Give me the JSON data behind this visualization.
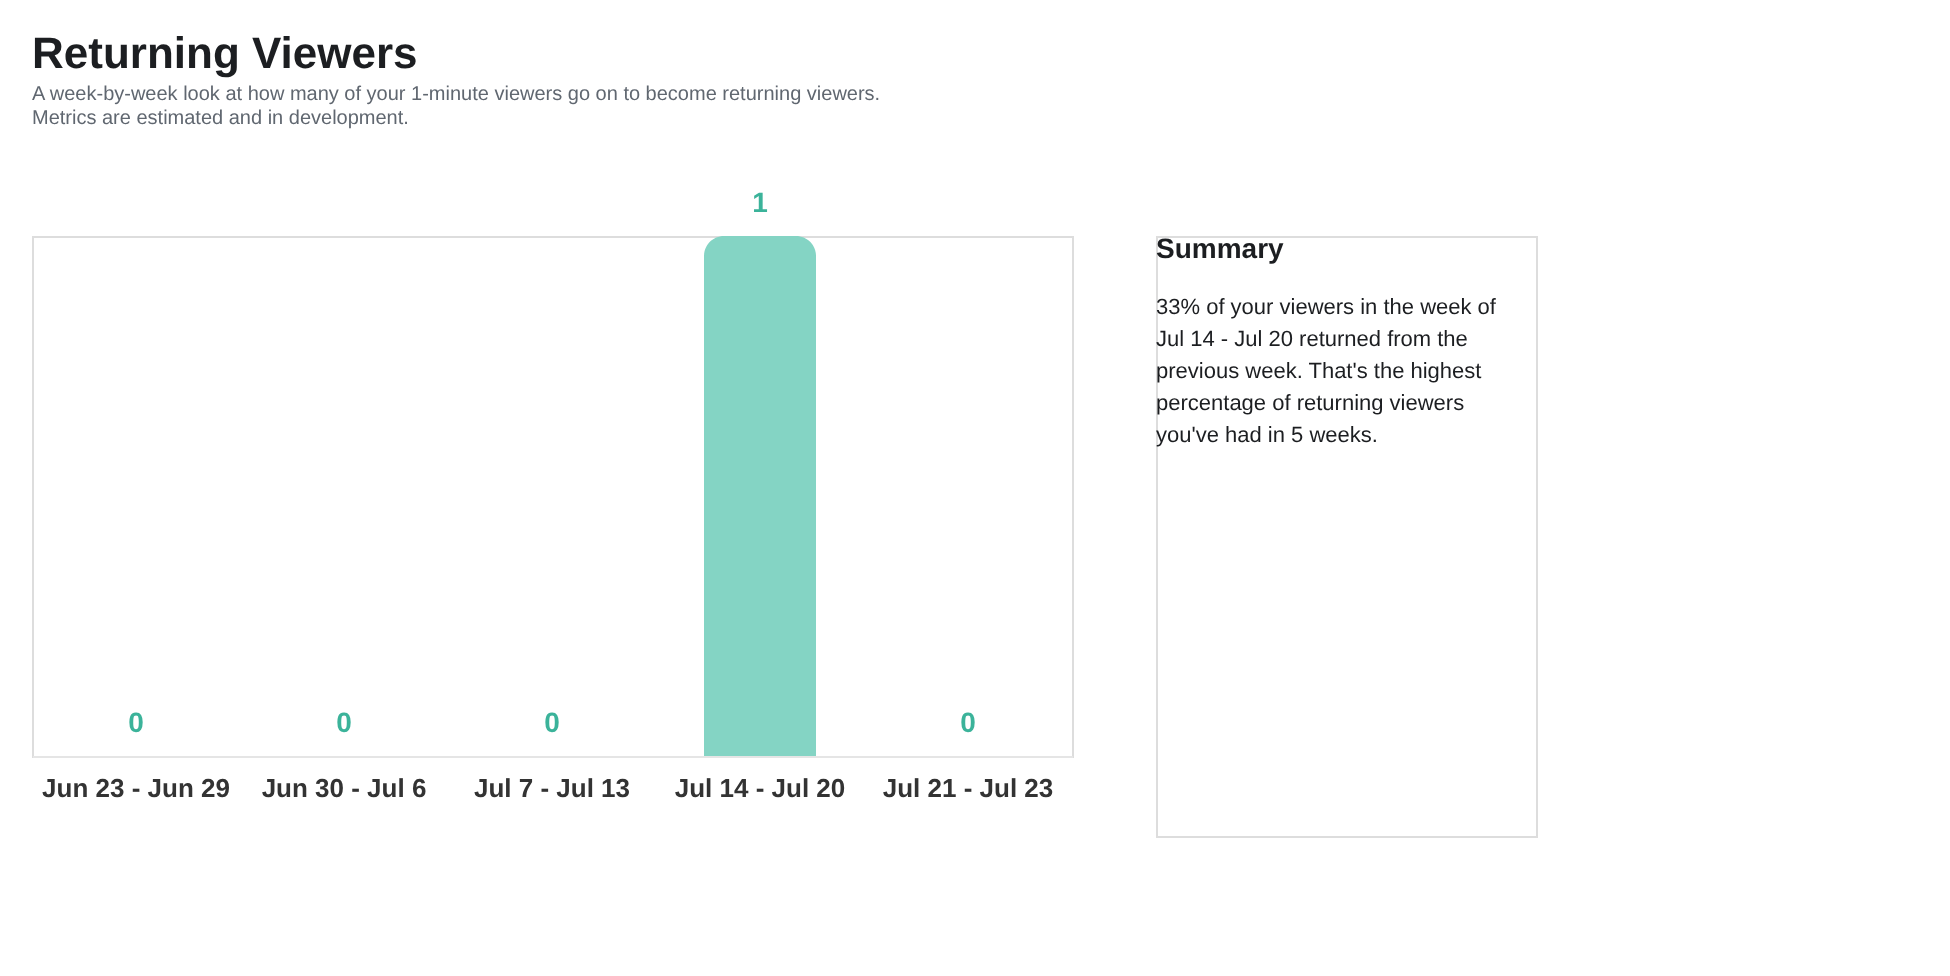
{
  "chart_data": {
    "type": "bar",
    "title": "Returning Viewers",
    "subtitle": "A week-by-week look at how many of your 1-minute viewers go on to become returning viewers. Metrics are estimated and in development.",
    "categories": [
      "Jun 23 - Jun 29",
      "Jun 30 - Jul 6",
      "Jul 7 - Jul 13",
      "Jul 14 - Jul 20",
      "Jul 21 - Jul 23"
    ],
    "values": [
      0,
      0,
      0,
      1,
      0
    ],
    "colors": [
      "#84d4c4",
      "#84d4c4",
      "#84d4c4",
      "#84d4c4",
      "#b8e8de"
    ],
    "data_labels": true,
    "grid": false,
    "annotations": [
      "Summary",
      "33% of your viewers in the week of Jul 14 - Jul 20 returned from the previous week. That's the highest percentage of returning viewers you've had in 5 weeks."
    ]
  }
}
